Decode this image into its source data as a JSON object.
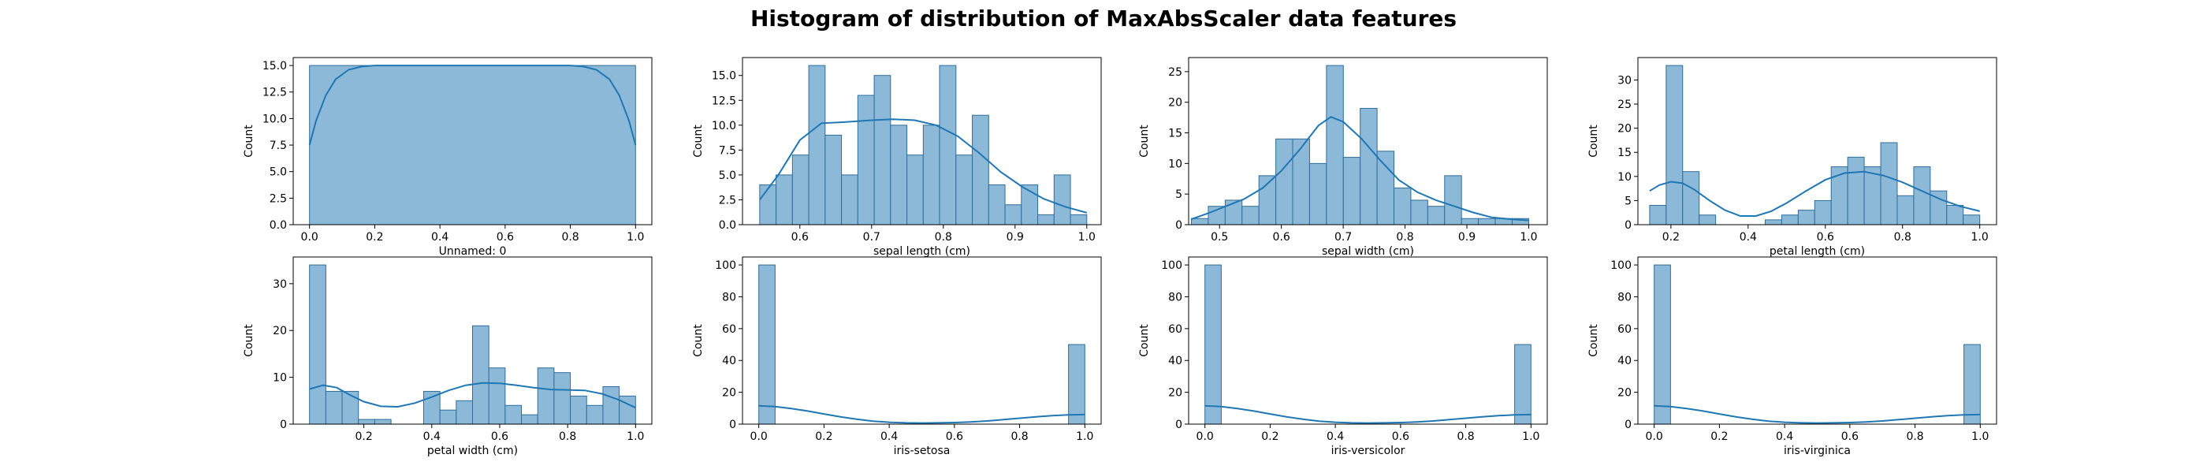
{
  "figure": {
    "title": "Histogram of distribution of MaxAbsScaler data features",
    "bar_color": "#8db9d9",
    "edge_color": "#2f6d99",
    "kde_color": "#1f77b4"
  },
  "chart_data": [
    {
      "type": "bar",
      "xlabel": "Unnamed: 0",
      "ylabel": "Count",
      "xlim": [
        -0.05,
        1.05
      ],
      "ylim": [
        0,
        15.75
      ],
      "xticks": [
        0.0,
        0.2,
        0.4,
        0.6,
        0.8,
        1.0
      ],
      "xtick_labels": [
        "0.0",
        "0.2",
        "0.4",
        "0.6",
        "0.8",
        "1.0"
      ],
      "yticks": [
        0.0,
        2.5,
        5.0,
        7.5,
        10.0,
        12.5,
        15.0
      ],
      "ytick_labels": [
        "0.0",
        "2.5",
        "5.0",
        "7.5",
        "10.0",
        "12.5",
        "15.0"
      ],
      "bin_edges": [
        0.0,
        1.0
      ],
      "counts": [
        15
      ],
      "kde": {
        "x": [
          0.0,
          0.02,
          0.05,
          0.08,
          0.12,
          0.16,
          0.2,
          0.3,
          0.4,
          0.5,
          0.6,
          0.7,
          0.8,
          0.84,
          0.88,
          0.92,
          0.95,
          0.98,
          1.0
        ],
        "y": [
          7.5,
          9.8,
          12.2,
          13.7,
          14.6,
          14.9,
          15.0,
          15.0,
          15.0,
          15.0,
          15.0,
          15.0,
          15.0,
          14.9,
          14.6,
          13.7,
          12.2,
          9.8,
          7.5
        ]
      }
    },
    {
      "type": "bar",
      "xlabel": "sepal length (cm)",
      "ylabel": "Count",
      "xlim": [
        0.52,
        1.02
      ],
      "ylim": [
        0,
        16.8
      ],
      "xticks": [
        0.6,
        0.7,
        0.8,
        0.9,
        1.0
      ],
      "xtick_labels": [
        "0.6",
        "0.7",
        "0.8",
        "0.9",
        "1.0"
      ],
      "yticks": [
        0.0,
        2.5,
        5.0,
        7.5,
        10.0,
        12.5,
        15.0
      ],
      "ytick_labels": [
        "0.0",
        "2.5",
        "5.0",
        "7.5",
        "10.0",
        "12.5",
        "15.0"
      ],
      "bin_edges": [
        0.544,
        0.5668,
        0.5896,
        0.6124,
        0.6352,
        0.658,
        0.6808,
        0.7036,
        0.7264,
        0.7492,
        0.772,
        0.7948,
        0.8176,
        0.8404,
        0.8632,
        0.886,
        0.9088,
        0.9316,
        0.9544,
        0.9772,
        1.0
      ],
      "counts": [
        4,
        5,
        7,
        16,
        9,
        5,
        13,
        15,
        10,
        7,
        10,
        16,
        7,
        11,
        4,
        2,
        4,
        1,
        5,
        1
      ],
      "kde": {
        "x": [
          0.544,
          0.57,
          0.6,
          0.63,
          0.66,
          0.7,
          0.73,
          0.76,
          0.79,
          0.82,
          0.85,
          0.88,
          0.91,
          0.94,
          0.97,
          1.0
        ],
        "y": [
          2.5,
          5.0,
          8.5,
          10.2,
          10.3,
          10.5,
          10.6,
          10.5,
          10.0,
          8.9,
          7.2,
          5.3,
          3.8,
          2.6,
          1.8,
          1.2
        ]
      }
    },
    {
      "type": "bar",
      "xlabel": "sepal width (cm)",
      "ylabel": "Count",
      "xlim": [
        0.45,
        1.03
      ],
      "ylim": [
        0,
        27.3
      ],
      "xticks": [
        0.5,
        0.6,
        0.7,
        0.8,
        0.9,
        1.0
      ],
      "xtick_labels": [
        "0.5",
        "0.6",
        "0.7",
        "0.8",
        "0.9",
        "1.0"
      ],
      "yticks": [
        0,
        5,
        10,
        15,
        20,
        25
      ],
      "ytick_labels": [
        "0",
        "5",
        "10",
        "15",
        "20",
        "25"
      ],
      "bin_edges": [
        0.4545,
        0.4818,
        0.5091,
        0.5364,
        0.5637,
        0.591,
        0.6183,
        0.6456,
        0.6729,
        0.7002,
        0.7275,
        0.7548,
        0.7821,
        0.8094,
        0.8367,
        0.864,
        0.8913,
        0.9186,
        0.9459,
        0.9732,
        1.0
      ],
      "counts": [
        1,
        3,
        4,
        3,
        8,
        14,
        14,
        10,
        26,
        11,
        19,
        12,
        6,
        4,
        3,
        8,
        1,
        1,
        1,
        1
      ],
      "kde": {
        "x": [
          0.4545,
          0.48,
          0.51,
          0.54,
          0.57,
          0.6,
          0.63,
          0.66,
          0.68,
          0.7,
          0.73,
          0.76,
          0.79,
          0.82,
          0.85,
          0.88,
          0.91,
          0.94,
          0.97,
          1.0
        ],
        "y": [
          0.9,
          1.8,
          3.0,
          4.2,
          6.0,
          8.8,
          12.3,
          16.2,
          17.6,
          16.8,
          14.0,
          10.5,
          7.3,
          5.3,
          4.0,
          3.0,
          2.0,
          1.2,
          0.9,
          0.7
        ]
      }
    },
    {
      "type": "bar",
      "xlabel": "petal length (cm)",
      "ylabel": "Count",
      "xlim": [
        0.1145,
        1.0435
      ],
      "ylim": [
        0,
        34.65
      ],
      "xticks": [
        0.2,
        0.4,
        0.6,
        0.8,
        1.0
      ],
      "xtick_labels": [
        "0.2",
        "0.4",
        "0.6",
        "0.8",
        "1.0"
      ],
      "yticks": [
        0,
        5,
        10,
        15,
        20,
        25,
        30
      ],
      "ytick_labels": [
        "0",
        "5",
        "10",
        "15",
        "20",
        "25",
        "30"
      ],
      "bin_edges": [
        0.1449,
        0.1877,
        0.2304,
        0.2732,
        0.3159,
        0.3587,
        0.4014,
        0.4442,
        0.4869,
        0.5297,
        0.5724,
        0.6152,
        0.658,
        0.7007,
        0.7435,
        0.7862,
        0.829,
        0.8717,
        0.9145,
        0.9572,
        1.0
      ],
      "counts": [
        4,
        33,
        11,
        2,
        0,
        0,
        0,
        1,
        2,
        3,
        5,
        12,
        14,
        12,
        17,
        6,
        12,
        7,
        4,
        2
      ],
      "kde": {
        "x": [
          0.1449,
          0.17,
          0.2,
          0.23,
          0.26,
          0.3,
          0.34,
          0.38,
          0.42,
          0.46,
          0.5,
          0.55,
          0.6,
          0.65,
          0.7,
          0.75,
          0.8,
          0.85,
          0.9,
          0.95,
          1.0
        ],
        "y": [
          7.0,
          8.2,
          8.9,
          8.6,
          7.3,
          5.0,
          3.0,
          1.8,
          1.8,
          2.8,
          4.5,
          7.0,
          9.3,
          10.7,
          11.0,
          10.2,
          8.8,
          7.0,
          5.2,
          3.8,
          2.8
        ]
      }
    },
    {
      "type": "bar",
      "xlabel": "petal width (cm)",
      "ylabel": "Count",
      "xlim": [
        -0.008,
        1.048
      ],
      "ylim": [
        0,
        35.7
      ],
      "xticks": [
        0.2,
        0.4,
        0.6,
        0.8,
        1.0
      ],
      "xtick_labels": [
        "0.2",
        "0.4",
        "0.6",
        "0.8",
        "1.0"
      ],
      "yticks": [
        0,
        10,
        20,
        30
      ],
      "ytick_labels": [
        "0",
        "10",
        "20",
        "30"
      ],
      "bin_edges": [
        0.04,
        0.088,
        0.136,
        0.184,
        0.232,
        0.28,
        0.328,
        0.376,
        0.424,
        0.472,
        0.52,
        0.568,
        0.616,
        0.664,
        0.712,
        0.76,
        0.808,
        0.856,
        0.904,
        0.952,
        1.0
      ],
      "counts": [
        34,
        7,
        7,
        1,
        1,
        0,
        0,
        7,
        3,
        5,
        21,
        12,
        4,
        2,
        12,
        11,
        6,
        4,
        8,
        6
      ],
      "kde": {
        "x": [
          0.04,
          0.08,
          0.12,
          0.16,
          0.2,
          0.25,
          0.3,
          0.35,
          0.4,
          0.45,
          0.5,
          0.55,
          0.6,
          0.65,
          0.7,
          0.75,
          0.8,
          0.85,
          0.9,
          0.95,
          1.0
        ],
        "y": [
          7.5,
          8.3,
          7.8,
          6.2,
          4.8,
          3.8,
          3.7,
          4.5,
          5.8,
          7.2,
          8.3,
          8.8,
          8.7,
          8.3,
          7.8,
          7.4,
          7.3,
          7.2,
          6.5,
          5.2,
          3.5
        ]
      }
    },
    {
      "type": "bar",
      "xlabel": "iris-setosa",
      "ylabel": "Count",
      "xlim": [
        -0.05,
        1.05
      ],
      "ylim": [
        0,
        105
      ],
      "xticks": [
        0.0,
        0.2,
        0.4,
        0.6,
        0.8,
        1.0
      ],
      "xtick_labels": [
        "0.0",
        "0.2",
        "0.4",
        "0.6",
        "0.8",
        "1.0"
      ],
      "yticks": [
        0,
        20,
        40,
        60,
        80,
        100
      ],
      "ytick_labels": [
        "0",
        "20",
        "40",
        "60",
        "80",
        "100"
      ],
      "bin_edges": [
        0.0,
        0.05,
        0.1,
        0.15,
        0.2,
        0.25,
        0.3,
        0.35,
        0.4,
        0.45,
        0.5,
        0.55,
        0.6,
        0.65,
        0.7,
        0.75,
        0.8,
        0.85,
        0.9,
        0.95,
        1.0
      ],
      "counts": [
        100,
        0,
        0,
        0,
        0,
        0,
        0,
        0,
        0,
        0,
        0,
        0,
        0,
        0,
        0,
        0,
        0,
        0,
        0,
        50
      ],
      "kde": {
        "x": [
          0.0,
          0.05,
          0.1,
          0.15,
          0.2,
          0.25,
          0.3,
          0.35,
          0.4,
          0.45,
          0.5,
          0.55,
          0.6,
          0.65,
          0.7,
          0.75,
          0.8,
          0.85,
          0.9,
          0.95,
          1.0
        ],
        "y": [
          11.5,
          11.0,
          9.8,
          8.2,
          6.4,
          4.6,
          3.1,
          1.9,
          1.2,
          0.8,
          0.7,
          0.8,
          1.0,
          1.4,
          2.0,
          2.8,
          3.7,
          4.6,
          5.3,
          5.8,
          6.0
        ]
      }
    },
    {
      "type": "bar",
      "xlabel": "iris-versicolor",
      "ylabel": "Count",
      "xlim": [
        -0.05,
        1.05
      ],
      "ylim": [
        0,
        105
      ],
      "xticks": [
        0.0,
        0.2,
        0.4,
        0.6,
        0.8,
        1.0
      ],
      "xtick_labels": [
        "0.0",
        "0.2",
        "0.4",
        "0.6",
        "0.8",
        "1.0"
      ],
      "yticks": [
        0,
        20,
        40,
        60,
        80,
        100
      ],
      "ytick_labels": [
        "0",
        "20",
        "40",
        "60",
        "80",
        "100"
      ],
      "bin_edges": [
        0.0,
        0.05,
        0.1,
        0.15,
        0.2,
        0.25,
        0.3,
        0.35,
        0.4,
        0.45,
        0.5,
        0.55,
        0.6,
        0.65,
        0.7,
        0.75,
        0.8,
        0.85,
        0.9,
        0.95,
        1.0
      ],
      "counts": [
        100,
        0,
        0,
        0,
        0,
        0,
        0,
        0,
        0,
        0,
        0,
        0,
        0,
        0,
        0,
        0,
        0,
        0,
        0,
        50
      ],
      "kde": {
        "x": [
          0.0,
          0.05,
          0.1,
          0.15,
          0.2,
          0.25,
          0.3,
          0.35,
          0.4,
          0.45,
          0.5,
          0.55,
          0.6,
          0.65,
          0.7,
          0.75,
          0.8,
          0.85,
          0.9,
          0.95,
          1.0
        ],
        "y": [
          11.5,
          11.0,
          9.8,
          8.2,
          6.4,
          4.6,
          3.1,
          1.9,
          1.2,
          0.8,
          0.7,
          0.8,
          1.0,
          1.4,
          2.0,
          2.8,
          3.7,
          4.6,
          5.3,
          5.8,
          6.0
        ]
      }
    },
    {
      "type": "bar",
      "xlabel": "iris-virginica",
      "ylabel": "Count",
      "xlim": [
        -0.05,
        1.05
      ],
      "ylim": [
        0,
        105
      ],
      "xticks": [
        0.0,
        0.2,
        0.4,
        0.6,
        0.8,
        1.0
      ],
      "xtick_labels": [
        "0.0",
        "0.2",
        "0.4",
        "0.6",
        "0.8",
        "1.0"
      ],
      "yticks": [
        0,
        20,
        40,
        60,
        80,
        100
      ],
      "ytick_labels": [
        "0",
        "20",
        "40",
        "60",
        "80",
        "100"
      ],
      "bin_edges": [
        0.0,
        0.05,
        0.1,
        0.15,
        0.2,
        0.25,
        0.3,
        0.35,
        0.4,
        0.45,
        0.5,
        0.55,
        0.6,
        0.65,
        0.7,
        0.75,
        0.8,
        0.85,
        0.9,
        0.95,
        1.0
      ],
      "counts": [
        100,
        0,
        0,
        0,
        0,
        0,
        0,
        0,
        0,
        0,
        0,
        0,
        0,
        0,
        0,
        0,
        0,
        0,
        0,
        50
      ],
      "kde": {
        "x": [
          0.0,
          0.05,
          0.1,
          0.15,
          0.2,
          0.25,
          0.3,
          0.35,
          0.4,
          0.45,
          0.5,
          0.55,
          0.6,
          0.65,
          0.7,
          0.75,
          0.8,
          0.85,
          0.9,
          0.95,
          1.0
        ],
        "y": [
          11.5,
          11.0,
          9.8,
          8.2,
          6.4,
          4.6,
          3.1,
          1.9,
          1.2,
          0.8,
          0.7,
          0.8,
          1.0,
          1.4,
          2.0,
          2.8,
          3.7,
          4.6,
          5.3,
          5.8,
          6.0
        ]
      }
    }
  ]
}
